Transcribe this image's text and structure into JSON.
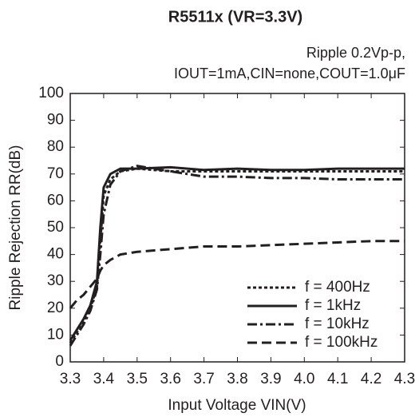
{
  "chart_data": {
    "type": "line",
    "title": "R5511x (VR=3.3V)",
    "subtitle": [
      "Ripple 0.2Vp-p,",
      "IOUT=1mA,CIN=none,COUT=1.0μF"
    ],
    "x_label": "Input Voltage VIN(V)",
    "y_label": "Ripple Rejection RR(dB)",
    "x": [
      3.3,
      3.32,
      3.34,
      3.36,
      3.38,
      3.39,
      3.4,
      3.42,
      3.45,
      3.5,
      3.6,
      3.7,
      3.8,
      3.9,
      4.0,
      4.1,
      4.2,
      4.3
    ],
    "series": [
      {
        "name": "f = 400Hz",
        "color": "#231f20",
        "dash": "4,3",
        "values": [
          7,
          11,
          15,
          20,
          28,
          45,
          62,
          68,
          71,
          72,
          71,
          71,
          71,
          71,
          71,
          71,
          71,
          71
        ]
      },
      {
        "name": "f = 1kHz",
        "color": "#231f20",
        "dash": "none",
        "values": [
          8,
          12,
          16,
          21,
          30,
          50,
          65,
          70,
          72,
          72,
          72.5,
          71.5,
          72,
          71.5,
          71.5,
          72,
          72,
          72
        ]
      },
      {
        "name": "f = 10kHz",
        "color": "#231f20",
        "dash": "12,4,3,4",
        "values": [
          6,
          10,
          14,
          19,
          27,
          40,
          55,
          66,
          71,
          73,
          71,
          69,
          69,
          68.5,
          68.5,
          68,
          68,
          68
        ]
      },
      {
        "name": "f = 100kHz",
        "color": "#231f20",
        "dash": "12,6",
        "values": [
          20,
          23,
          25,
          28,
          31,
          34,
          36,
          38,
          40,
          41,
          42,
          43,
          43,
          43.5,
          44,
          44.5,
          45,
          45
        ]
      }
    ],
    "xlim": [
      3.3,
      4.3
    ],
    "xticks": [
      3.3,
      3.4,
      3.5,
      3.6,
      3.7,
      3.8,
      3.9,
      {
        "value": 4,
        "label": "4.0"
      },
      4.1,
      4.2,
      4.3
    ],
    "ylim": [
      0,
      100
    ],
    "yticks": [
      0,
      10,
      20,
      30,
      40,
      50,
      60,
      70,
      80,
      90,
      100
    ],
    "grid": false,
    "legend": "lower right"
  }
}
